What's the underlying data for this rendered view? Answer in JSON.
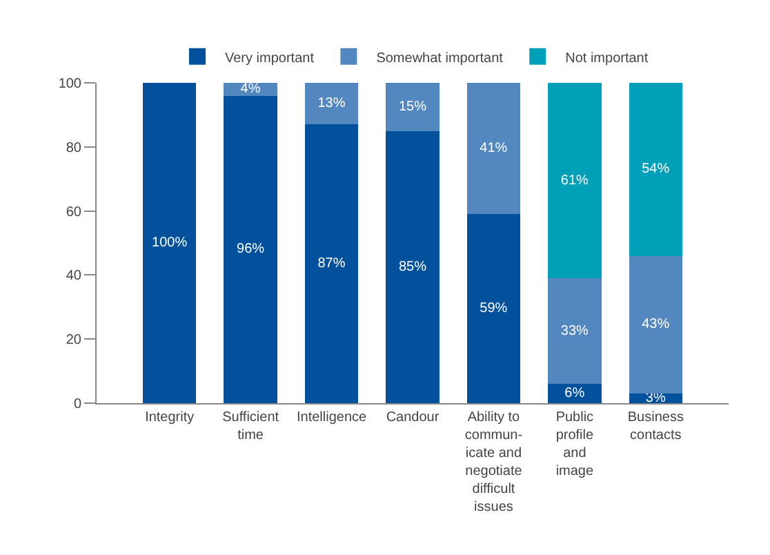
{
  "chart_data": {
    "type": "bar",
    "stacked": true,
    "categories": [
      "Integrity",
      "Sufficient\ntime",
      "Intelligence",
      "Candour",
      "Ability to\ncommun-\nicate and\nnegotiate\ndifficult\nissues",
      "Public\nprofile\nand\nimage",
      "Business\ncontacts"
    ],
    "series": [
      {
        "name": "Very important",
        "color": "#03519c",
        "values": [
          100,
          96,
          87,
          85,
          59,
          6,
          3
        ],
        "value_labels": [
          "100%",
          "96%",
          "87%",
          "85%",
          "59%",
          "6%",
          "3%"
        ]
      },
      {
        "name": "Somewhat important",
        "color": "#5288bf",
        "values": [
          0,
          4,
          13,
          15,
          41,
          33,
          43
        ],
        "value_labels": [
          null,
          "4%",
          "13%",
          "15%",
          "41%",
          "33%",
          "43%"
        ]
      },
      {
        "name": "Not important",
        "color": "#00a0b8",
        "values": [
          0,
          0,
          0,
          0,
          0,
          61,
          54
        ],
        "value_labels": [
          null,
          null,
          null,
          null,
          null,
          "61%",
          "54%"
        ]
      }
    ],
    "ylim": [
      0,
      100
    ],
    "yticks": [
      0,
      20,
      40,
      60,
      80,
      100
    ],
    "legend": "top"
  }
}
